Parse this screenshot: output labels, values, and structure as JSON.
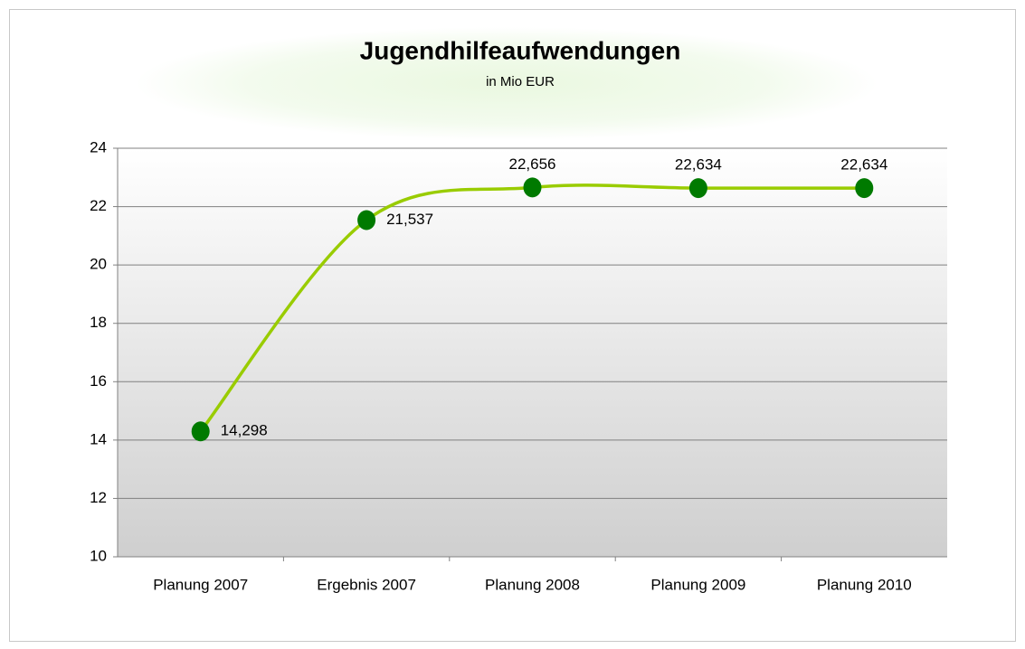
{
  "chart_data": {
    "type": "line",
    "title": "Jugendhilfeaufwendungen",
    "subtitle": "in Mio EUR",
    "categories": [
      "Planung 2007",
      "Ergebnis 2007",
      "Planung 2008",
      "Planung 2009",
      "Planung 2010"
    ],
    "values": [
      14.298,
      21.537,
      22.656,
      22.634,
      22.634
    ],
    "value_labels": [
      "14,298",
      "21,537",
      "22,656",
      "22,634",
      "22,634"
    ],
    "line_color": "#99cc00",
    "marker_color": "#007a00",
    "ylim": [
      10,
      24
    ],
    "yticks": [
      10,
      12,
      14,
      16,
      18,
      20,
      22,
      24
    ],
    "grid": true,
    "smooth": true
  }
}
